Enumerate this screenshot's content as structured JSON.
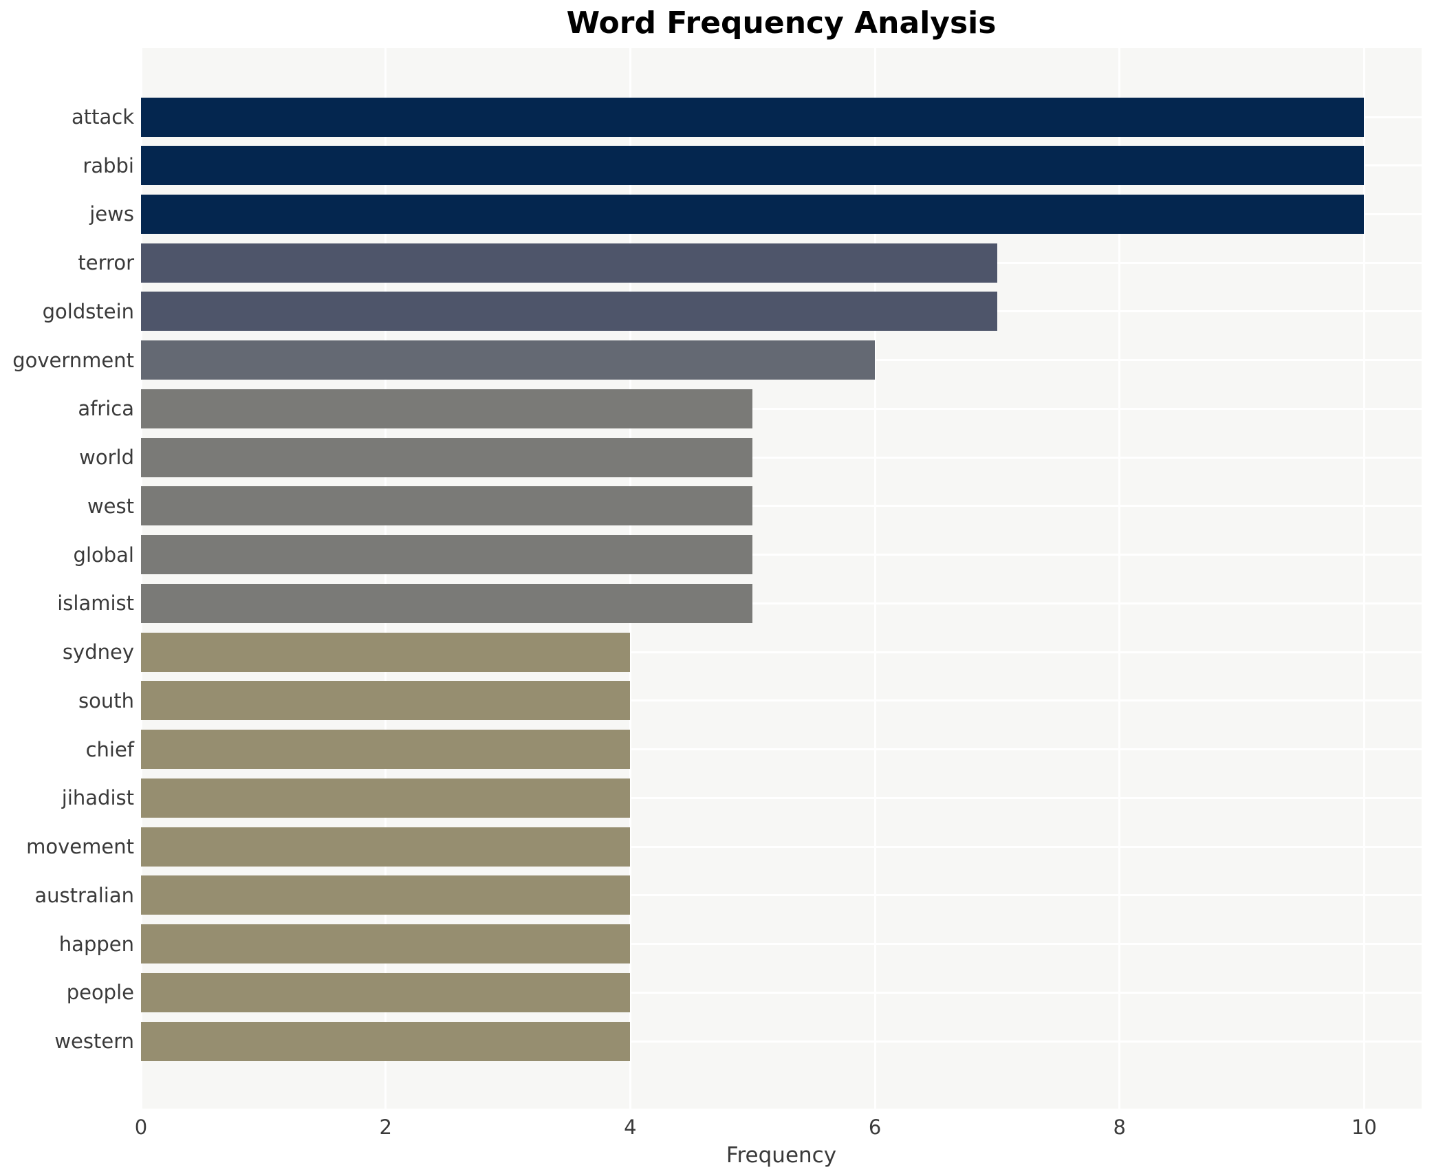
{
  "chart_data": {
    "type": "bar",
    "orientation": "horizontal",
    "title": "Word Frequency Analysis",
    "xlabel": "Frequency",
    "ylabel": "",
    "categories": [
      "attack",
      "rabbi",
      "jews",
      "terror",
      "goldstein",
      "government",
      "africa",
      "world",
      "west",
      "global",
      "islamist",
      "sydney",
      "south",
      "chief",
      "jihadist",
      "movement",
      "australian",
      "happen",
      "people",
      "western"
    ],
    "values": [
      10,
      10,
      10,
      7,
      7,
      6,
      5,
      5,
      5,
      5,
      5,
      4,
      4,
      4,
      4,
      4,
      4,
      4,
      4,
      4
    ],
    "bar_colors": [
      "#04264f",
      "#04264f",
      "#04264f",
      "#4e556a",
      "#4e556a",
      "#646973",
      "#7a7a77",
      "#7a7a77",
      "#7a7a77",
      "#7a7a77",
      "#7a7a77",
      "#968e70",
      "#968e70",
      "#968e70",
      "#968e70",
      "#968e70",
      "#968e70",
      "#968e70",
      "#968e70",
      "#968e70"
    ],
    "xticks": [
      0,
      2,
      4,
      6,
      8,
      10
    ],
    "xtick_labels": [
      "0",
      "2",
      "4",
      "6",
      "8",
      "10"
    ],
    "xlim": [
      0,
      10.47
    ],
    "grid": true,
    "legend": "none",
    "plot_background": "#f7f7f5",
    "grid_color": "#ffffff",
    "title_color": "#000000",
    "axis_text_color": "#3a3a3a"
  }
}
